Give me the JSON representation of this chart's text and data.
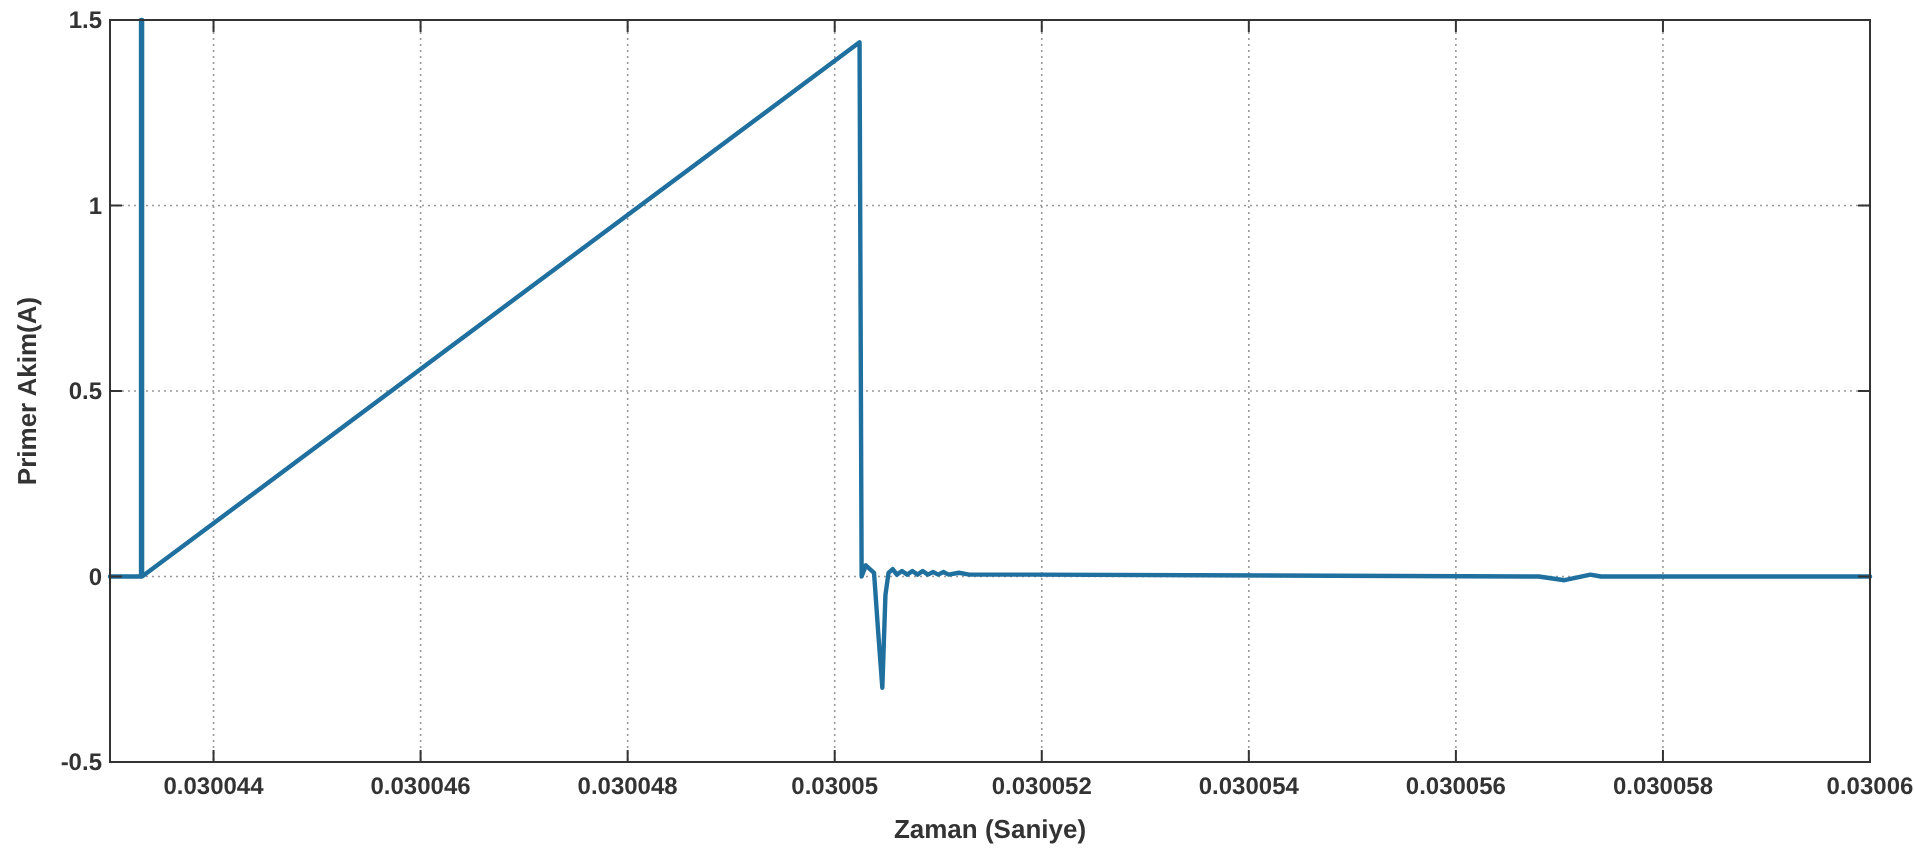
{
  "chart_data": {
    "type": "line",
    "xlabel": "Zaman (Saniye)",
    "ylabel": "Primer Akim(A)",
    "xlim": [
      0.030043,
      0.03006
    ],
    "xticks": [
      0.030044,
      0.030046,
      0.030048,
      0.03005,
      0.030052,
      0.030054,
      0.030056,
      0.030058,
      0.03006
    ],
    "ylim": [
      -0.5,
      1.5
    ],
    "yticks": [
      -0.5,
      0,
      0.5,
      1,
      1.5
    ],
    "grid": true,
    "series": [
      {
        "color": "#1f6f9f",
        "x": [
          0.030043,
          0.0300433,
          0.0300433,
          0.03004331,
          0.03004331,
          0.03005024,
          0.03005025,
          0.03005026,
          0.0300503,
          0.03005034,
          0.03005038,
          0.03005042,
          0.03005046,
          0.03005049,
          0.03005052,
          0.03005056,
          0.0300506,
          0.03005065,
          0.0300507,
          0.03005075,
          0.0300508,
          0.03005085,
          0.0300509,
          0.03005095,
          0.030051,
          0.03005105,
          0.0300511,
          0.0300512,
          0.0300513,
          0.0300519,
          0.0300568,
          0.03005705,
          0.0300573,
          0.0300574,
          0.03006
        ],
        "values": [
          0,
          0,
          1.5,
          1.5,
          0,
          1.44,
          0.72,
          0,
          0.03,
          0.02,
          0.01,
          -0.15,
          -0.3,
          -0.05,
          0.01,
          0.02,
          0.005,
          0.015,
          0.005,
          0.015,
          0.005,
          0.015,
          0.005,
          0.012,
          0.005,
          0.012,
          0.005,
          0.01,
          0.005,
          0.005,
          0,
          -0.01,
          0.005,
          0,
          0
        ]
      }
    ]
  }
}
